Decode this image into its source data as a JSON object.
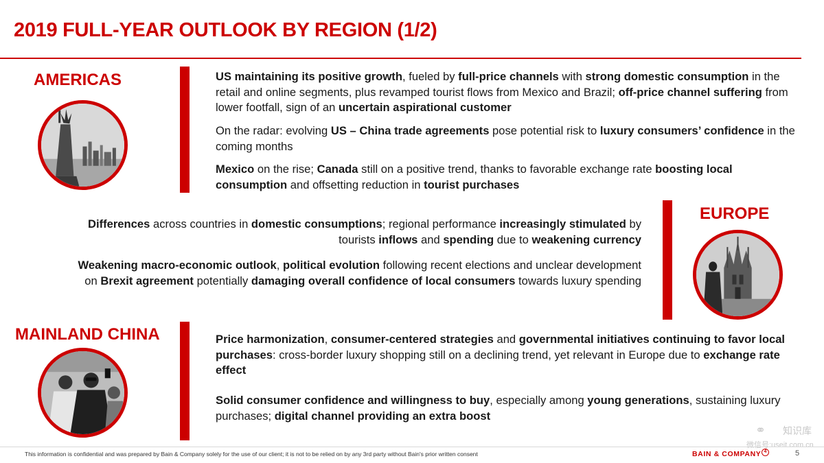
{
  "slide": {
    "title": "2019 FULL-YEAR OUTLOOK BY REGION (1/2)",
    "page_number": "5"
  },
  "regions": [
    {
      "id": "americas",
      "label": "AMERICAS",
      "photo_icon": "statue-of-liberty-photo",
      "paragraphs": [
        [
          {
            "t": "US maintaining its positive growth",
            "b": true
          },
          {
            "t": ", fueled by "
          },
          {
            "t": "full-price channels",
            "b": true
          },
          {
            "t": " with "
          },
          {
            "t": "strong domestic consumption",
            "b": true
          },
          {
            "t": " in the retail and online segments, plus revamped tourist flows from Mexico and Brazil; "
          },
          {
            "t": "off-price channel suffering",
            "b": true
          },
          {
            "t": " from lower footfall, sign of an "
          },
          {
            "t": "uncertain aspirational customer",
            "b": true
          }
        ],
        [
          {
            "t": "On the radar: evolving "
          },
          {
            "t": "US – China trade agreements",
            "b": true
          },
          {
            "t": " pose potential risk to "
          },
          {
            "t": "luxury consumers’ confidence",
            "b": true
          },
          {
            "t": " in the coming months"
          }
        ],
        [
          {
            "t": "Mexico",
            "b": true
          },
          {
            "t": " on the rise; "
          },
          {
            "t": "Canada",
            "b": true
          },
          {
            "t": " still on a positive trend, thanks to favorable exchange rate "
          },
          {
            "t": "boosting local consumption",
            "b": true
          },
          {
            "t": " and offsetting reduction in "
          },
          {
            "t": "tourist purchases",
            "b": true
          }
        ]
      ]
    },
    {
      "id": "europe",
      "label": "EUROPE",
      "photo_icon": "milan-cathedral-photo",
      "paragraphs": [
        [
          {
            "t": "Differences",
            "b": true
          },
          {
            "t": " across countries in "
          },
          {
            "t": "domestic consumptions",
            "b": true
          },
          {
            "t": "; regional performance "
          },
          {
            "t": "increasingly stimulated",
            "b": true
          },
          {
            "t": " by tourists "
          },
          {
            "t": "inflows",
            "b": true
          },
          {
            "t": " and "
          },
          {
            "t": "spending",
            "b": true
          },
          {
            "t": " due to "
          },
          {
            "t": "weakening currency",
            "b": true
          }
        ],
        [
          {
            "t": "Weakening macro-economic outlook",
            "b": true
          },
          {
            "t": ", "
          },
          {
            "t": "political evolution",
            "b": true
          },
          {
            "t": " following recent elections and unclear development on "
          },
          {
            "t": "Brexit agreement",
            "b": true
          },
          {
            "t": " potentially "
          },
          {
            "t": "damaging overall confidence of local consumers",
            "b": true
          },
          {
            "t": " towards luxury spending"
          }
        ]
      ]
    },
    {
      "id": "mainland-china",
      "label": "MAINLAND CHINA",
      "photo_icon": "young-shoppers-photo",
      "paragraphs": [
        [
          {
            "t": "Price harmonization",
            "b": true
          },
          {
            "t": ", "
          },
          {
            "t": "consumer-centered strategies",
            "b": true
          },
          {
            "t": " and "
          },
          {
            "t": "governmental initiatives continuing to favor local purchases",
            "b": true
          },
          {
            "t": ": cross-border luxury shopping still on a declining trend, yet relevant in Europe due to "
          },
          {
            "t": "exchange rate effect",
            "b": true
          }
        ],
        [
          {
            "t": "Solid consumer confidence and willingness to buy",
            "b": true
          },
          {
            "t": ", especially among "
          },
          {
            "t": "young generations",
            "b": true
          },
          {
            "t": ", sustaining luxury purchases; "
          },
          {
            "t": "digital channel providing an extra boost",
            "b": true
          }
        ]
      ]
    }
  ],
  "footer": {
    "disclaimer": "This information is confidential and was prepared by Bain & Company solely for the use of our client; it is not to be relied on by any 3rd party without Bain's prior written consent",
    "brand": "BAIN & COMPANY",
    "brand_mark": "4",
    "watermark_line1": "知识库",
    "watermark_line2": "微信号:useit.com.cn"
  },
  "colors": {
    "accent": "#cc0000",
    "text": "#1a1a1a"
  }
}
